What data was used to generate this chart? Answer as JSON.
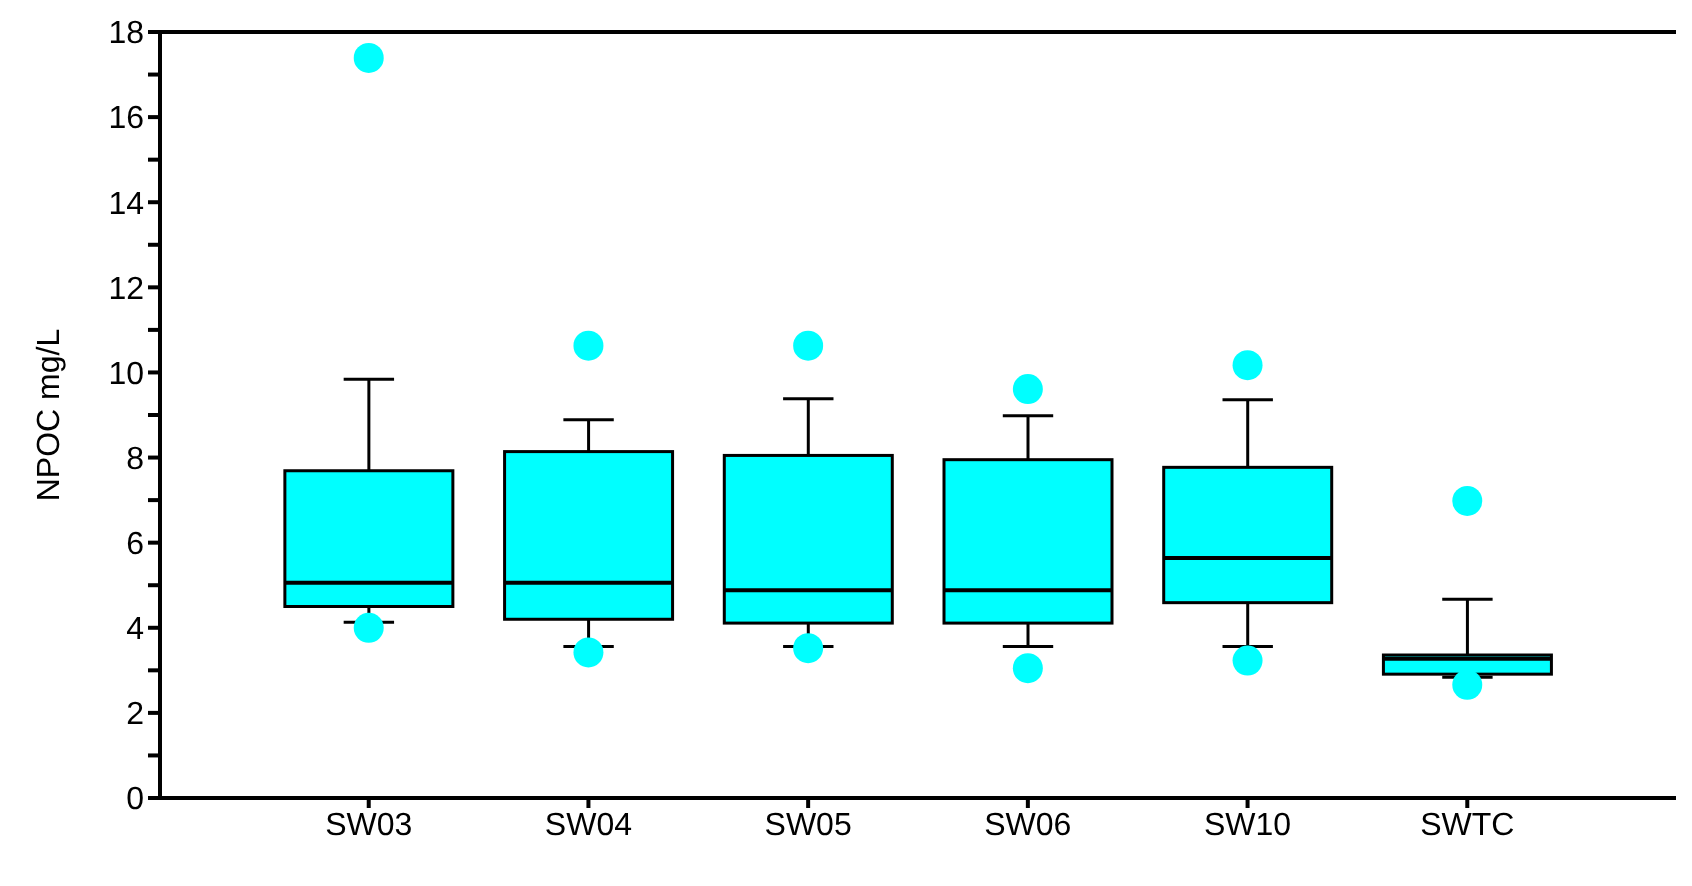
{
  "chart_data": {
    "type": "box",
    "ylabel": "NPOC mg/L",
    "categories": [
      "SW03",
      "SW04",
      "SW05",
      "SW06",
      "SW10",
      "SWTC"
    ],
    "color": "#00ffff",
    "boxes": [
      {
        "low": 4.13,
        "q1": 4.5,
        "median": 5.06,
        "q3": 7.69,
        "high": 9.84,
        "outliers": [
          17.39,
          4.0
        ]
      },
      {
        "low": 3.56,
        "q1": 4.2,
        "median": 5.06,
        "q3": 8.14,
        "high": 8.89,
        "outliers": [
          10.63,
          3.42
        ]
      },
      {
        "low": 3.56,
        "q1": 4.11,
        "median": 4.88,
        "q3": 8.05,
        "high": 9.38,
        "outliers": [
          10.63,
          3.52
        ]
      },
      {
        "low": 3.56,
        "q1": 4.11,
        "median": 4.88,
        "q3": 7.95,
        "high": 8.98,
        "outliers": [
          9.61,
          3.05
        ]
      },
      {
        "low": 3.56,
        "q1": 4.59,
        "median": 5.64,
        "q3": 7.77,
        "high": 9.36,
        "outliers": [
          10.17,
          3.23
        ]
      },
      {
        "low": 2.84,
        "q1": 2.91,
        "median": 3.27,
        "q3": 3.36,
        "high": 4.67,
        "outliers": [
          6.98,
          2.66
        ]
      }
    ],
    "ylim": [
      0,
      18
    ],
    "yticks": [
      0,
      {
        "value": 1,
        "label": null
      },
      2,
      {
        "value": 3,
        "label": null
      },
      4,
      {
        "value": 5,
        "label": null
      },
      6,
      {
        "value": 7,
        "label": null
      },
      8,
      {
        "value": 9,
        "label": null
      },
      10,
      {
        "value": 11,
        "label": null
      },
      12,
      {
        "value": 13,
        "label": null
      },
      14,
      {
        "value": 15,
        "label": null
      },
      16,
      {
        "value": 17,
        "label": null
      },
      18
    ],
    "grid": false,
    "legend": false
  }
}
